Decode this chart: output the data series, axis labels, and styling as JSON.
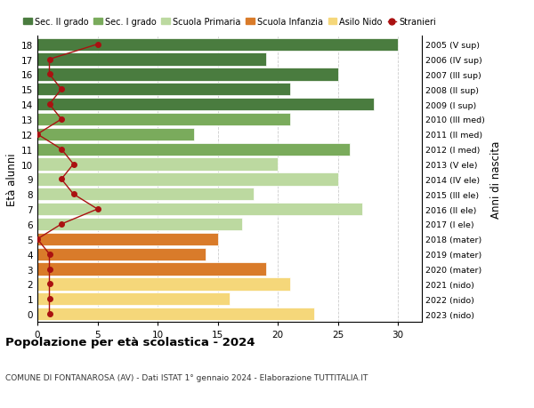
{
  "ages": [
    18,
    17,
    16,
    15,
    14,
    13,
    12,
    11,
    10,
    9,
    8,
    7,
    6,
    5,
    4,
    3,
    2,
    1,
    0
  ],
  "right_labels": [
    "2005 (V sup)",
    "2006 (IV sup)",
    "2007 (III sup)",
    "2008 (II sup)",
    "2009 (I sup)",
    "2010 (III med)",
    "2011 (II med)",
    "2012 (I med)",
    "2013 (V ele)",
    "2014 (IV ele)",
    "2015 (III ele)",
    "2016 (II ele)",
    "2017 (I ele)",
    "2018 (mater)",
    "2019 (mater)",
    "2020 (mater)",
    "2021 (nido)",
    "2022 (nido)",
    "2023 (nido)"
  ],
  "bar_values": [
    30,
    19,
    25,
    21,
    28,
    21,
    13,
    26,
    20,
    25,
    18,
    27,
    17,
    15,
    14,
    19,
    21,
    16,
    23
  ],
  "bar_colors": [
    "#4a7c3f",
    "#4a7c3f",
    "#4a7c3f",
    "#4a7c3f",
    "#4a7c3f",
    "#7aab5c",
    "#7aab5c",
    "#7aab5c",
    "#bcd9a0",
    "#bcd9a0",
    "#bcd9a0",
    "#bcd9a0",
    "#bcd9a0",
    "#d97b2a",
    "#d97b2a",
    "#d97b2a",
    "#f5d77a",
    "#f5d77a",
    "#f5d77a"
  ],
  "stranieri_values": [
    5,
    1,
    1,
    2,
    1,
    2,
    0,
    2,
    3,
    2,
    3,
    5,
    2,
    0,
    1,
    1,
    1,
    1,
    1
  ],
  "title": "Popolazione per età scolastica - 2024",
  "subtitle": "COMUNE DI FONTANAROSA (AV) - Dati ISTAT 1° gennaio 2024 - Elaborazione TUTTITALIA.IT",
  "ylabel": "Età alunni",
  "ylabel_right": "Anni di nascita",
  "xlim": [
    0,
    32
  ],
  "xticks": [
    0,
    5,
    10,
    15,
    20,
    25,
    30
  ],
  "legend_labels": [
    "Sec. II grado",
    "Sec. I grado",
    "Scuola Primaria",
    "Scuola Infanzia",
    "Asilo Nido",
    "Stranieri"
  ],
  "legend_colors": [
    "#4a7c3f",
    "#7aab5c",
    "#bcd9a0",
    "#d97b2a",
    "#f5d77a",
    "#aa1111"
  ],
  "stranieri_line_color": "#aa1111",
  "grid_color": "#cccccc"
}
